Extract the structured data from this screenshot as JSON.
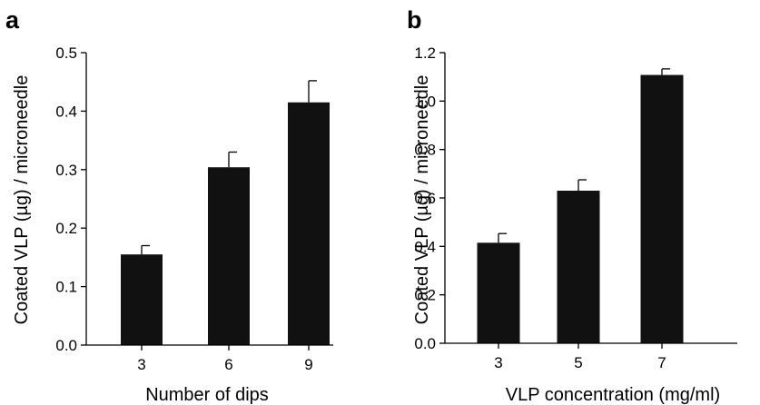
{
  "chart_data": [
    {
      "type": "bar",
      "panel": "a",
      "categories": [
        "3",
        "6",
        "9"
      ],
      "values": [
        0.155,
        0.304,
        0.415
      ],
      "errors": [
        0.015,
        0.026,
        0.037
      ],
      "xlabel": "Number of dips",
      "ylabel": "Coated VLP (µg) / microneedle",
      "ylim": [
        0.0,
        0.5
      ],
      "yticks": [
        "0.0",
        "0.1",
        "0.2",
        "0.3",
        "0.4",
        "0.5"
      ],
      "bar_color": "#111111",
      "grid": false
    },
    {
      "type": "bar",
      "panel": "b",
      "categories": [
        "3",
        "5",
        "7"
      ],
      "values": [
        0.415,
        0.63,
        1.108
      ],
      "errors": [
        0.038,
        0.045,
        0.025
      ],
      "xlabel": "VLP concentration (mg/ml)",
      "ylabel": "Coated VLP (µg) / microneedle",
      "ylim": [
        0.0,
        1.2
      ],
      "yticks": [
        "0.0",
        "0.2",
        "0.4",
        "0.6",
        "0.8",
        "1.0",
        "1.2"
      ],
      "bar_color": "#111111",
      "grid": false
    }
  ]
}
